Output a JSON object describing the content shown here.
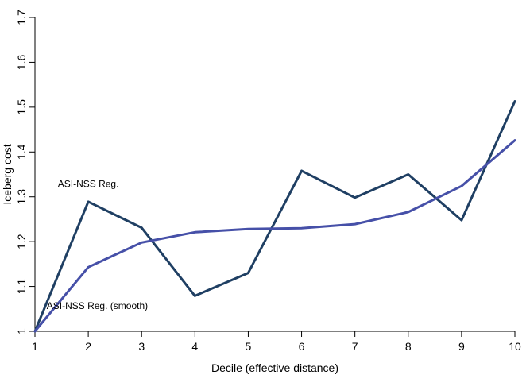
{
  "chart_data": {
    "type": "line",
    "title": "",
    "xlabel": "Decile (effective distance)",
    "ylabel": "Iceberg cost",
    "x": [
      1,
      2,
      3,
      4,
      5,
      6,
      7,
      8,
      9,
      10
    ],
    "xlim": [
      1,
      10
    ],
    "ylim": [
      1,
      1.7
    ],
    "xticks": [
      1,
      2,
      3,
      4,
      5,
      6,
      7,
      8,
      9,
      10
    ],
    "yticks": [
      1,
      1.1,
      1.2,
      1.3,
      1.4,
      1.5,
      1.6,
      1.7
    ],
    "ytick_labels": [
      "1",
      "1.1",
      "1.2",
      "1.3",
      "1.4",
      "1.5",
      "1.6",
      "1.7"
    ],
    "grid": false,
    "legend": "none",
    "series": [
      {
        "name": "ASI-NSS Reg.",
        "color": "#1f3f63",
        "values": [
          1.0,
          1.289,
          1.231,
          1.079,
          1.13,
          1.358,
          1.298,
          1.35,
          1.248,
          1.513
        ]
      },
      {
        "name": "ASI-NSS Reg. (smooth)",
        "color": "#4650a8",
        "values": [
          1.0,
          1.143,
          1.198,
          1.221,
          1.228,
          1.23,
          1.239,
          1.266,
          1.324,
          1.426
        ]
      }
    ],
    "annotations": [
      {
        "text": "ASI-NSS Reg.",
        "x": 2.0,
        "y": 1.322,
        "anchor": "middle"
      },
      {
        "text": "ASI-NSS Reg. (smooth)",
        "x": 1.22,
        "y": 1.05,
        "anchor": "start"
      }
    ]
  }
}
